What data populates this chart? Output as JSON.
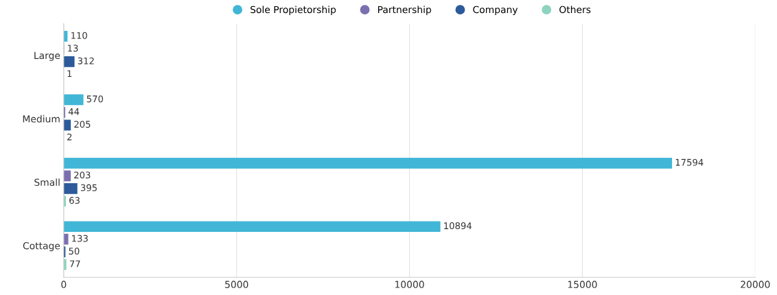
{
  "chart_data": {
    "type": "bar",
    "orientation": "horizontal",
    "categories": [
      "Large",
      "Medium",
      "Small",
      "Cottage"
    ],
    "series": [
      {
        "name": "Sole Propietorship",
        "color": "#41b6d6",
        "values": [
          110,
          570,
          17594,
          10894
        ]
      },
      {
        "name": "Partnership",
        "color": "#7b6fb0",
        "values": [
          13,
          44,
          203,
          133
        ]
      },
      {
        "name": "Company",
        "color": "#2c5a9a",
        "values": [
          312,
          205,
          395,
          50
        ]
      },
      {
        "name": "Others",
        "color": "#8dd3c0",
        "values": [
          1,
          2,
          63,
          77
        ]
      }
    ],
    "xlim": [
      0,
      20000
    ],
    "xticks": [
      0,
      5000,
      10000,
      15000,
      20000
    ],
    "grid": "x",
    "legend": "top",
    "data_labels": true
  }
}
